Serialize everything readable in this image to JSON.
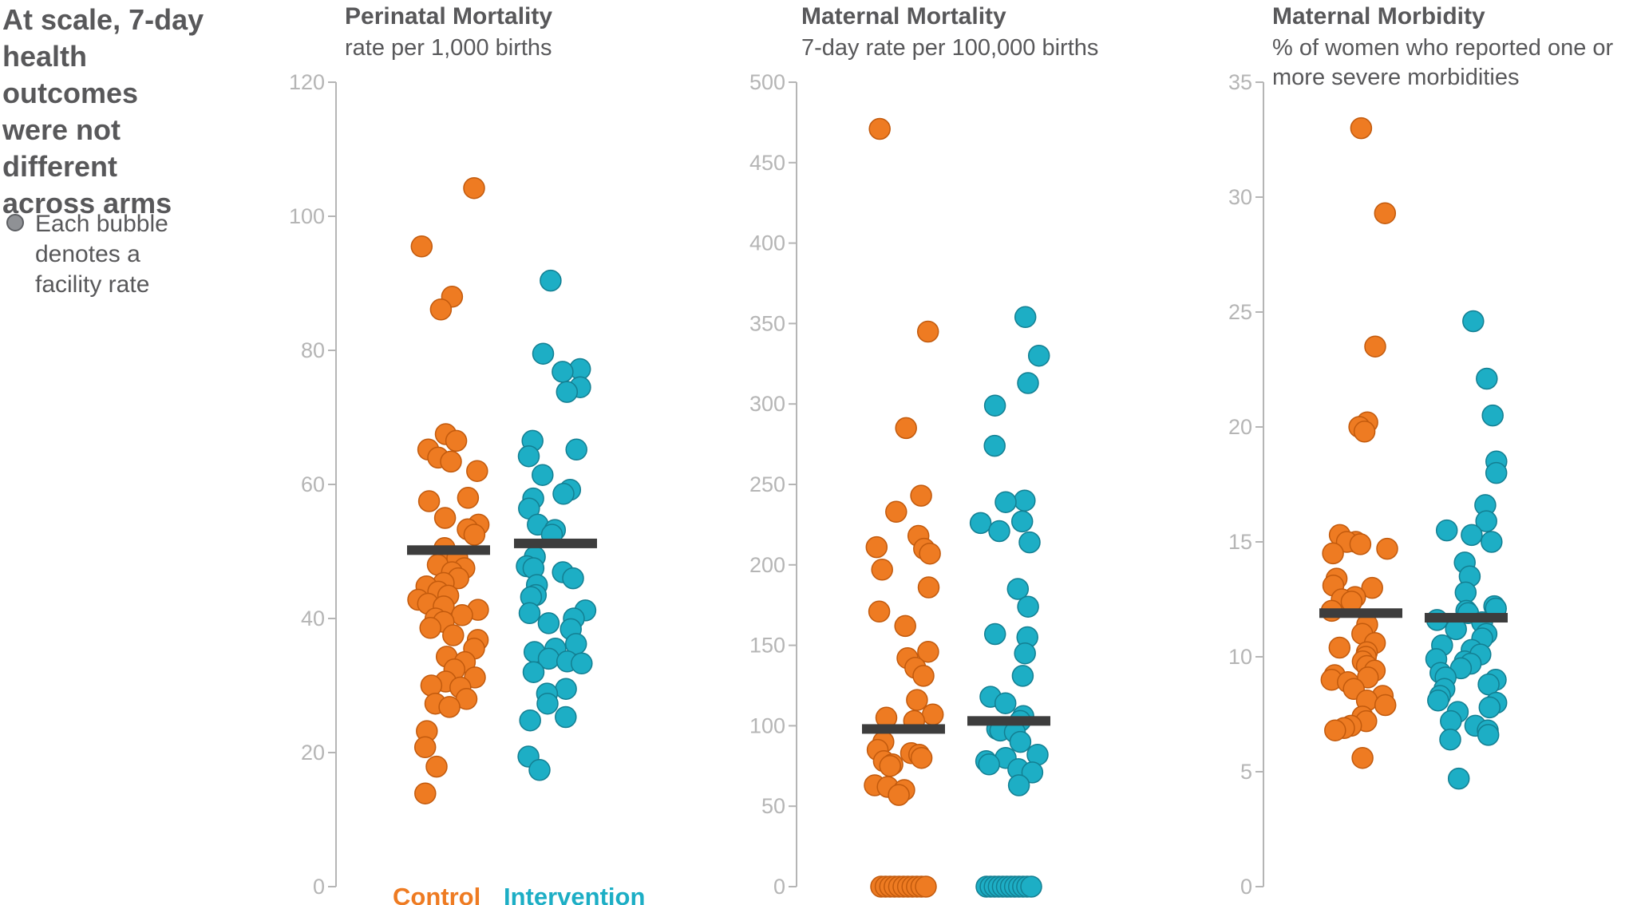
{
  "headline": "At scale, 7-day health outcomes were not different across arms",
  "legend_text": "Each bubble denotes a facility rate",
  "colors": {
    "control": "#ee7b22",
    "intervention": "#1daec5",
    "median": "#3d3d3d",
    "axis": "#b5b5b5",
    "text": "#58585a"
  },
  "arms": {
    "control": "Control",
    "intervention": "Intervention"
  },
  "chart_data": [
    {
      "type": "scatter",
      "title": "Perinatal Mortality",
      "subtitle": [
        "rate per 1,000 births"
      ],
      "ylim": [
        0,
        120
      ],
      "yticks": [
        0,
        20,
        40,
        60,
        80,
        100,
        120
      ],
      "categories": [
        "Control",
        "Intervention"
      ],
      "series": [
        {
          "name": "Control",
          "median": 50.2,
          "values": [
            104.2,
            95.5,
            88.0,
            86.1,
            67.5,
            66.5,
            65.2,
            64.0,
            63.4,
            62.0,
            58.0,
            57.5,
            54.0,
            53.3,
            55.0,
            52.5,
            50.5,
            49.0,
            48.0,
            47.5,
            46.9,
            46.0,
            45.3,
            44.8,
            44.0,
            43.4,
            42.8,
            42.2,
            41.8,
            41.3,
            40.5,
            40.0,
            39.5,
            38.6,
            37.5,
            36.8,
            35.5,
            34.3,
            33.5,
            32.4,
            31.2,
            30.6,
            30.0,
            29.7,
            28.0,
            27.3,
            26.8,
            23.2,
            20.8,
            17.9,
            13.9
          ]
        },
        {
          "name": "Intervention",
          "median": 51.2,
          "values": [
            90.4,
            79.5,
            77.2,
            76.8,
            74.5,
            73.8,
            66.5,
            65.2,
            64.2,
            61.4,
            59.2,
            58.6,
            57.9,
            56.4,
            54.0,
            53.2,
            52.5,
            49.2,
            47.8,
            47.5,
            46.9,
            46.0,
            45.0,
            43.5,
            43.2,
            41.2,
            40.8,
            40.0,
            39.3,
            38.4,
            36.2,
            35.5,
            35.0,
            34.0,
            33.6,
            33.3,
            32.0,
            29.5,
            28.8,
            27.3,
            25.3,
            24.8,
            19.4,
            17.4
          ]
        }
      ]
    },
    {
      "type": "scatter",
      "title": "Maternal Mortality",
      "subtitle": [
        "7-day rate per 100,000 births"
      ],
      "ylim": [
        0,
        500
      ],
      "yticks": [
        0,
        50,
        100,
        150,
        200,
        250,
        300,
        350,
        400,
        450,
        500
      ],
      "categories": [
        "Control",
        "Intervention"
      ],
      "series": [
        {
          "name": "Control",
          "median": 98,
          "values": [
            471,
            345,
            285,
            243,
            233,
            218,
            211,
            210,
            207,
            197,
            186,
            171,
            162,
            146,
            142,
            136,
            131,
            116,
            107,
            105,
            103,
            90,
            85,
            83,
            82,
            80,
            78,
            76,
            75,
            63,
            62,
            60,
            57,
            0,
            0,
            0,
            0,
            0,
            0,
            0,
            0,
            0,
            0,
            0
          ]
        },
        {
          "name": "Intervention",
          "median": 103,
          "values": [
            354,
            330,
            313,
            299,
            274,
            240,
            239,
            227,
            226,
            221,
            214,
            185,
            174,
            157,
            155,
            145,
            131,
            118,
            114,
            106,
            103,
            98,
            97,
            96,
            90,
            82,
            80,
            78,
            76,
            73,
            71,
            63,
            0,
            0,
            0,
            0,
            0,
            0,
            0,
            0,
            0,
            0,
            0,
            0
          ]
        }
      ]
    },
    {
      "type": "scatter",
      "title": "Maternal Morbidity",
      "subtitle": [
        "% of women who reported one or",
        "more severe morbidities"
      ],
      "ylim": [
        0,
        35
      ],
      "yticks": [
        0,
        5,
        10,
        15,
        20,
        25,
        30,
        35
      ],
      "categories": [
        "Control",
        "Intervention"
      ],
      "series": [
        {
          "name": "Control",
          "median": 11.9,
          "values": [
            33.0,
            29.3,
            23.5,
            20.2,
            20.0,
            19.8,
            15.3,
            15.0,
            15.0,
            14.9,
            14.7,
            14.5,
            13.4,
            13.1,
            13.0,
            12.6,
            12.5,
            12.4,
            12.0,
            11.4,
            11.0,
            10.6,
            10.4,
            10.2,
            10.0,
            9.8,
            9.6,
            9.4,
            9.2,
            9.1,
            9.0,
            8.9,
            8.6,
            8.3,
            8.1,
            7.9,
            7.4,
            7.2,
            7.0,
            6.9,
            6.8,
            5.6
          ]
        },
        {
          "name": "Intervention",
          "median": 11.7,
          "values": [
            24.6,
            22.1,
            20.5,
            18.5,
            18.0,
            16.6,
            15.9,
            15.5,
            15.3,
            15.0,
            14.1,
            13.5,
            12.8,
            12.2,
            12.1,
            12.0,
            11.9,
            11.6,
            11.5,
            11.2,
            11.0,
            10.8,
            10.5,
            10.3,
            10.1,
            9.9,
            9.8,
            9.7,
            9.5,
            9.3,
            9.1,
            9.0,
            8.8,
            8.6,
            8.3,
            8.1,
            8.0,
            7.8,
            7.6,
            7.2,
            7.0,
            6.8,
            6.6,
            6.4,
            4.7
          ]
        }
      ]
    }
  ]
}
